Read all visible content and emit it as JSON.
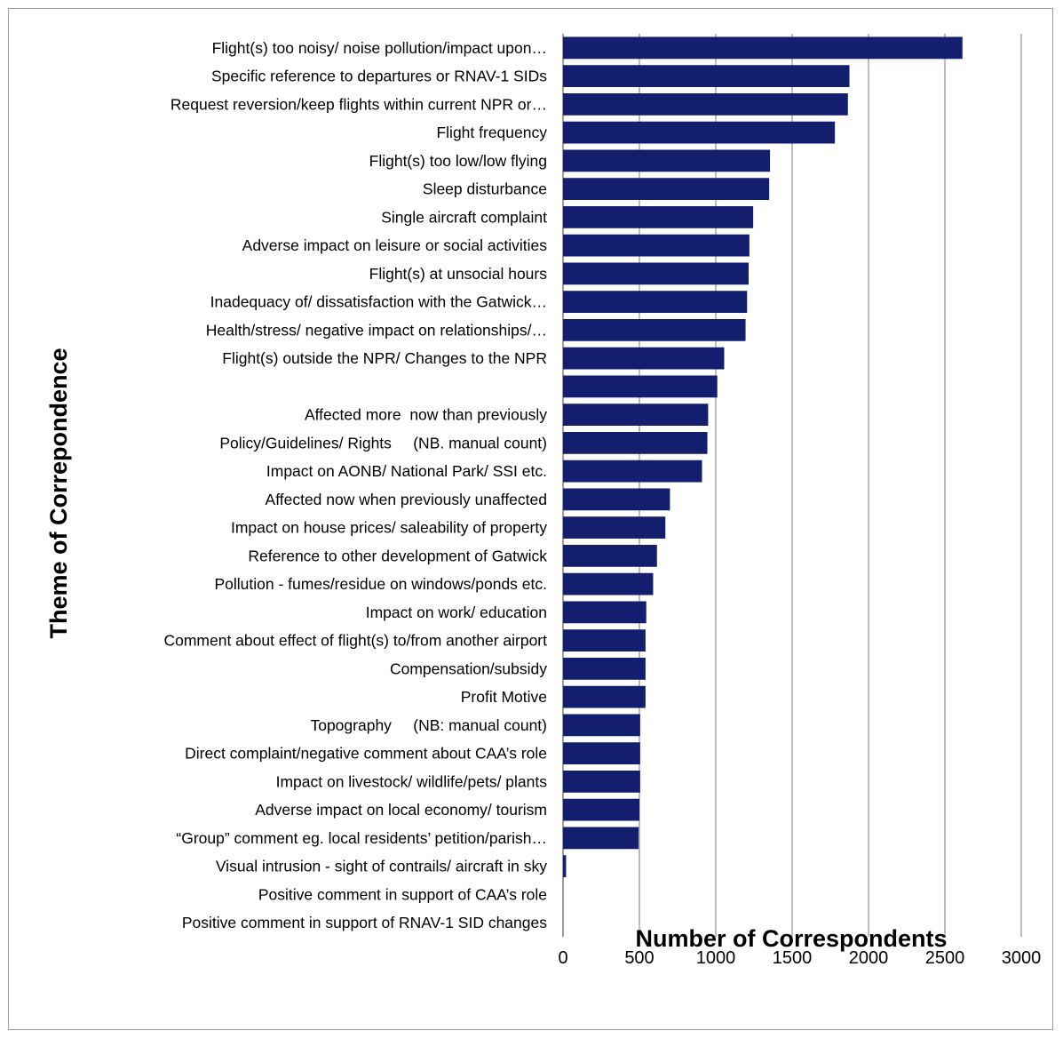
{
  "chart_data": {
    "type": "bar",
    "orientation": "horizontal",
    "xlabel": "Number of Correspondents",
    "ylabel": "Theme of Correpondence",
    "xlim": [
      0,
      3000
    ],
    "xticks": [
      "0",
      "500",
      "1000",
      "1500",
      "2000",
      "2500",
      "3000"
    ],
    "grid": "vertical",
    "bar_color": "#141E6E",
    "categories": [
      "Flight(s) too noisy/ noise pollution/impact upon…",
      "Specific reference to departures or RNAV-1 SIDs",
      "Request reversion/keep flights within current NPR or…",
      "Flight frequency",
      "Flight(s) too low/low flying",
      "Sleep disturbance",
      "Single aircraft complaint",
      "Adverse impact on leisure or social activities",
      "Flight(s) at unsocial hours",
      "Inadequacy of/ dissatisfaction with the Gatwick…",
      "Health/stress/ negative impact on relationships/…",
      "Flight(s) outside the NPR/ Changes to the NPR",
      "",
      "Affected more  now than previously",
      "Policy/Guidelines/ Rights     (NB. manual count)",
      "Impact on AONB/ National Park/ SSI etc.",
      "Affected now when previously unaffected",
      "Impact on house prices/ saleability of property",
      "Reference to other development of Gatwick",
      "Pollution - fumes/residue on windows/ponds etc.",
      "Impact on work/ education",
      "Comment about effect of flight(s) to/from another airport",
      "Compensation/subsidy",
      "Profit Motive",
      "Topography     (NB: manual count)",
      "Direct complaint/negative comment about CAA’s role",
      "Impact on livestock/ wildlife/pets/ plants",
      "Adverse impact on local economy/ tourism",
      "“Group” comment eg. local residents’ petition/parish…",
      "Visual intrusion - sight of contrails/ aircraft in sky",
      "Positive comment in support of CAA’s role",
      "Positive comment in support of RNAV-1 SID changes"
    ],
    "values": [
      2615,
      1875,
      1865,
      1780,
      1355,
      1350,
      1245,
      1220,
      1215,
      1205,
      1195,
      1055,
      1010,
      950,
      945,
      910,
      700,
      670,
      615,
      590,
      545,
      540,
      540,
      540,
      505,
      505,
      505,
      500,
      495,
      20,
      0,
      0
    ]
  }
}
